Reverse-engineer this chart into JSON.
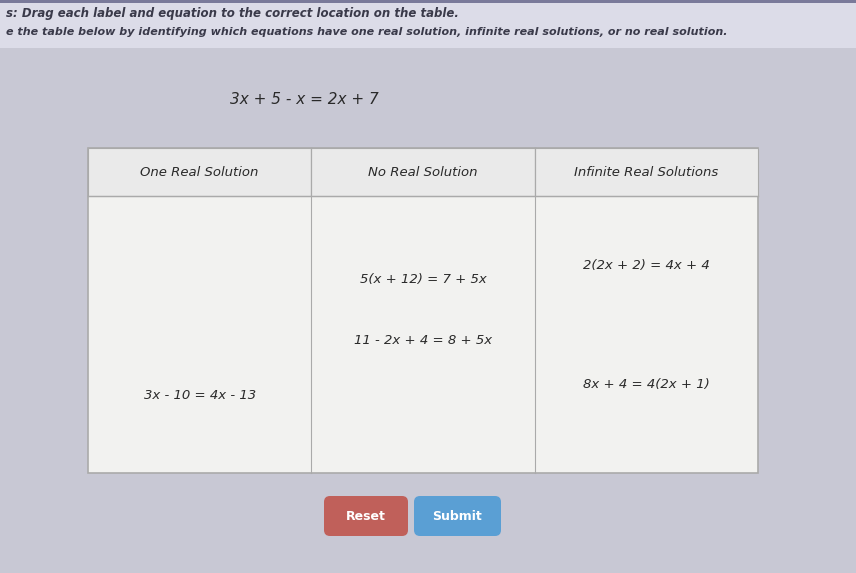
{
  "background_color": "#c8c8d4",
  "page_bg": "#e8e8ee",
  "instruction_line1": "s: Drag each label and equation to the correct location on the table.",
  "instruction_line2": "e the table below by identifying which equations have one real solution, infinite real solutions, or no real solution.",
  "floating_equation": "3x + 5 - x = 2x + 7",
  "col_headers": [
    "One Real Solution",
    "No Real Solution",
    "Infinite Real Solutions"
  ],
  "col1_body": [
    "3x - 10 = 4x - 13"
  ],
  "col2_body": [
    "5(x + 12) = 7 + 5x",
    "11 - 2x + 4 = 8 + 5x"
  ],
  "col3_body": [
    "2(2x + 2) = 4x + 4",
    "8x + 4 = 4(2x + 1)"
  ],
  "reset_btn_color": "#c0605a",
  "submit_btn_color": "#5a9fd4",
  "reset_label": "Reset",
  "submit_label": "Submit",
  "table_bg": "#f2f2f0",
  "table_header_bg": "#eaeaea",
  "table_border_color": "#aaaaaa",
  "text_color": "#2a2a2a",
  "instr_color": "#3a3a4a"
}
